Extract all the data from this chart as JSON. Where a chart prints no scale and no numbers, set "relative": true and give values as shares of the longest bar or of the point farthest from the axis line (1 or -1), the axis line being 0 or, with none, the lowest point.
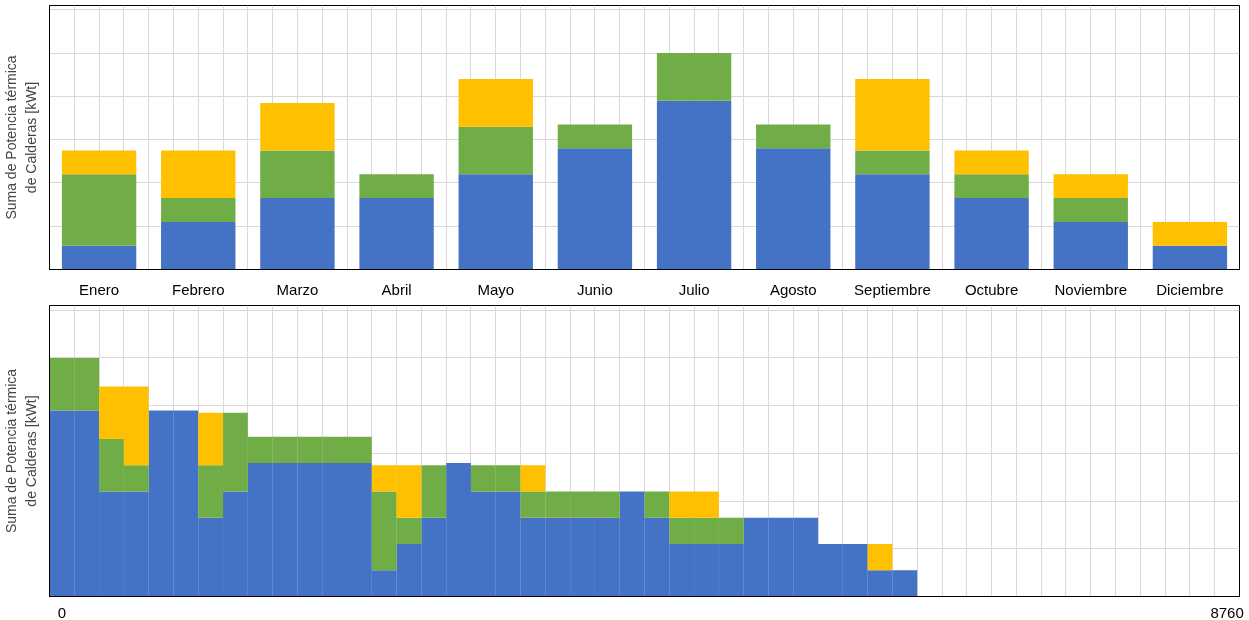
{
  "chart_data": [
    {
      "type": "bar",
      "stacked": true,
      "relative": true,
      "grid": true,
      "ylabel": "Suma de Potencia térmica de Calderas [kWt]",
      "categories": [
        "Enero",
        "Febrero",
        "Marzo",
        "Abril",
        "Mayo",
        "Junio",
        "Julio",
        "Agosto",
        "Septiembre",
        "Octubre",
        "Noviembre",
        "Diciembre"
      ],
      "series": [
        {
          "color": "#4472c4",
          "values": [
            0.11,
            0.22,
            0.33,
            0.33,
            0.44,
            0.56,
            0.78,
            0.56,
            0.44,
            0.33,
            0.22,
            0.11
          ]
        },
        {
          "color": "#70ad47",
          "values": [
            0.33,
            0.11,
            0.22,
            0.11,
            0.22,
            0.11,
            0.22,
            0.11,
            0.11,
            0.11,
            0.11,
            0
          ]
        },
        {
          "color": "#ffc000",
          "values": [
            0.11,
            0.22,
            0.22,
            0,
            0.22,
            0,
            0,
            0,
            0.33,
            0.11,
            0.11,
            0.11
          ]
        }
      ]
    },
    {
      "type": "bar",
      "stacked": true,
      "relative": true,
      "grid": true,
      "ylabel": "Suma de Potencia térmica de Calderas [kWt]",
      "categories": [
        "0",
        null,
        null,
        null,
        null,
        null,
        null,
        null,
        null,
        null,
        null,
        null,
        null,
        null,
        null,
        null,
        null,
        null,
        null,
        null,
        null,
        null,
        null,
        null,
        null,
        null,
        null,
        null,
        null,
        null,
        null,
        null,
        null,
        null,
        null,
        null,
        null,
        null,
        null,
        null,
        null,
        null,
        null,
        null,
        null,
        null,
        null,
        "8760"
      ],
      "series": [
        {
          "color": "#4472c4",
          "values": [
            0.78,
            0.78,
            0.44,
            0.44,
            0.78,
            0.78,
            0.33,
            0.44,
            0.56,
            0.56,
            0.56,
            0.56,
            0.56,
            0.11,
            0.22,
            0.33,
            0.56,
            0.44,
            0.44,
            0.33,
            0.33,
            0.33,
            0.33,
            0.44,
            0.33,
            0.22,
            0.22,
            0.22,
            0.33,
            0.33,
            0.33,
            0.22,
            0.22,
            0.11,
            0.11,
            0,
            0,
            0,
            0,
            0,
            0,
            0,
            0,
            0,
            0,
            0,
            0,
            0
          ]
        },
        {
          "color": "#70ad47",
          "values": [
            0.22,
            0.22,
            0.22,
            0.11,
            0,
            0,
            0.22,
            0.33,
            0.11,
            0.11,
            0.11,
            0.11,
            0.11,
            0.33,
            0.11,
            0.22,
            0,
            0.11,
            0.11,
            0.11,
            0.11,
            0.11,
            0.11,
            0,
            0.11,
            0.11,
            0.11,
            0.11,
            0,
            0,
            0,
            0,
            0,
            0,
            0,
            0,
            0,
            0,
            0,
            0,
            0,
            0,
            0,
            0,
            0,
            0,
            0,
            0
          ]
        },
        {
          "color": "#ffc000",
          "values": [
            0,
            0,
            0.22,
            0.33,
            0,
            0,
            0.22,
            0,
            0,
            0,
            0,
            0,
            0,
            0.11,
            0.22,
            0,
            0,
            0,
            0,
            0.11,
            0,
            0,
            0,
            0,
            0,
            0.11,
            0.11,
            0,
            0,
            0,
            0,
            0,
            0,
            0.11,
            0,
            0,
            0,
            0,
            0,
            0,
            0,
            0,
            0,
            0,
            0,
            0,
            0,
            0
          ]
        }
      ]
    }
  ]
}
